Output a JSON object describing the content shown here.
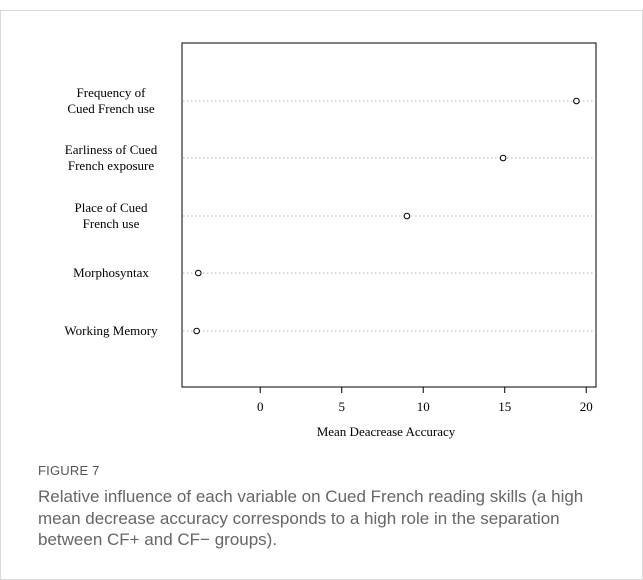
{
  "chart_data": {
    "type": "scatter",
    "xlabel": "Mean Deacrease Accuracy",
    "ylabel": "",
    "xlim": [
      -4.8,
      20.6
    ],
    "x_ticks": [
      0,
      5,
      10,
      15,
      20
    ],
    "categories": [
      [
        "Frequency of",
        "Cued French use"
      ],
      [
        "Earliness of Cued",
        "French exposure"
      ],
      [
        "Place of Cued",
        "French use"
      ],
      [
        "Morphosyntax"
      ],
      [
        "Working Memory"
      ]
    ],
    "values": [
      19.4,
      14.9,
      9.0,
      -3.8,
      -3.9
    ],
    "grid": "dotted horizontal lines per variable",
    "marker": "open-circle"
  },
  "caption": {
    "label": "FIGURE 7",
    "text": "Relative influence of each variable on Cued French reading skills (a high mean decrease accuracy corresponds to a high role in the separation between CF+ and CF− groups)."
  }
}
